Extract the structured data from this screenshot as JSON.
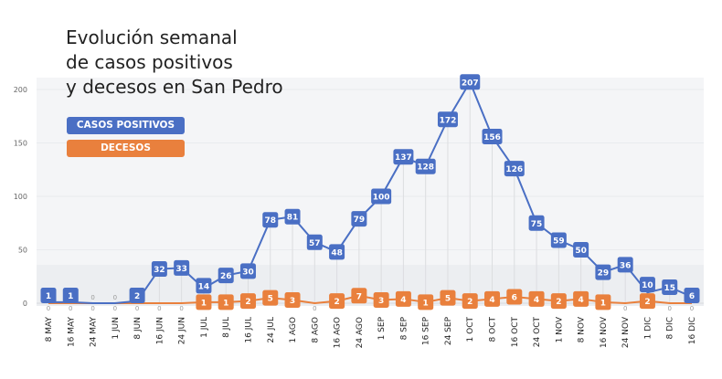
{
  "chart_data": {
    "type": "line",
    "title_lines": [
      "Evolución semanal",
      "de casos positivos",
      "y decesos en San Pedro"
    ],
    "categories": [
      "8 MAY",
      "16 MAY",
      "24 MAY",
      "1 JUN",
      "8 JUN",
      "16 JUN",
      "24 JUN",
      "1 JUL",
      "8 JUL",
      "16 JUL",
      "24 JUL",
      "1 AGO",
      "8 AGO",
      "16 AGO",
      "24 AGO",
      "1 SEP",
      "8 SEP",
      "16 SEP",
      "24 SEP",
      "1 OCT",
      "8 OCT",
      "16 OCT",
      "24 OCT",
      "1 NOV",
      "8 NOV",
      "16 NOV",
      "24 NOV",
      "1 DIC",
      "8 DIC",
      "16 DIC"
    ],
    "series": [
      {
        "name": "CASOS POSITIVOS",
        "color": "#4a6fc4",
        "values": [
          1,
          1,
          0,
          0,
          2,
          32,
          33,
          14,
          26,
          30,
          78,
          81,
          57,
          48,
          79,
          100,
          137,
          128,
          172,
          207,
          156,
          126,
          75,
          59,
          50,
          29,
          36,
          10,
          15,
          6
        ]
      },
      {
        "name": "DECESOS",
        "color": "#e9803d",
        "values": [
          0,
          0,
          0,
          0,
          0,
          0,
          0,
          1,
          1,
          2,
          5,
          3,
          0,
          2,
          7,
          3,
          4,
          1,
          5,
          2,
          4,
          6,
          4,
          2,
          4,
          1,
          0,
          2,
          0,
          0
        ]
      }
    ],
    "yticks": [
      0,
      50,
      100,
      150,
      200
    ],
    "ylim": [
      0,
      210
    ],
    "xlabel": "",
    "ylabel": "",
    "grid": true,
    "legend_position": "top-left"
  }
}
